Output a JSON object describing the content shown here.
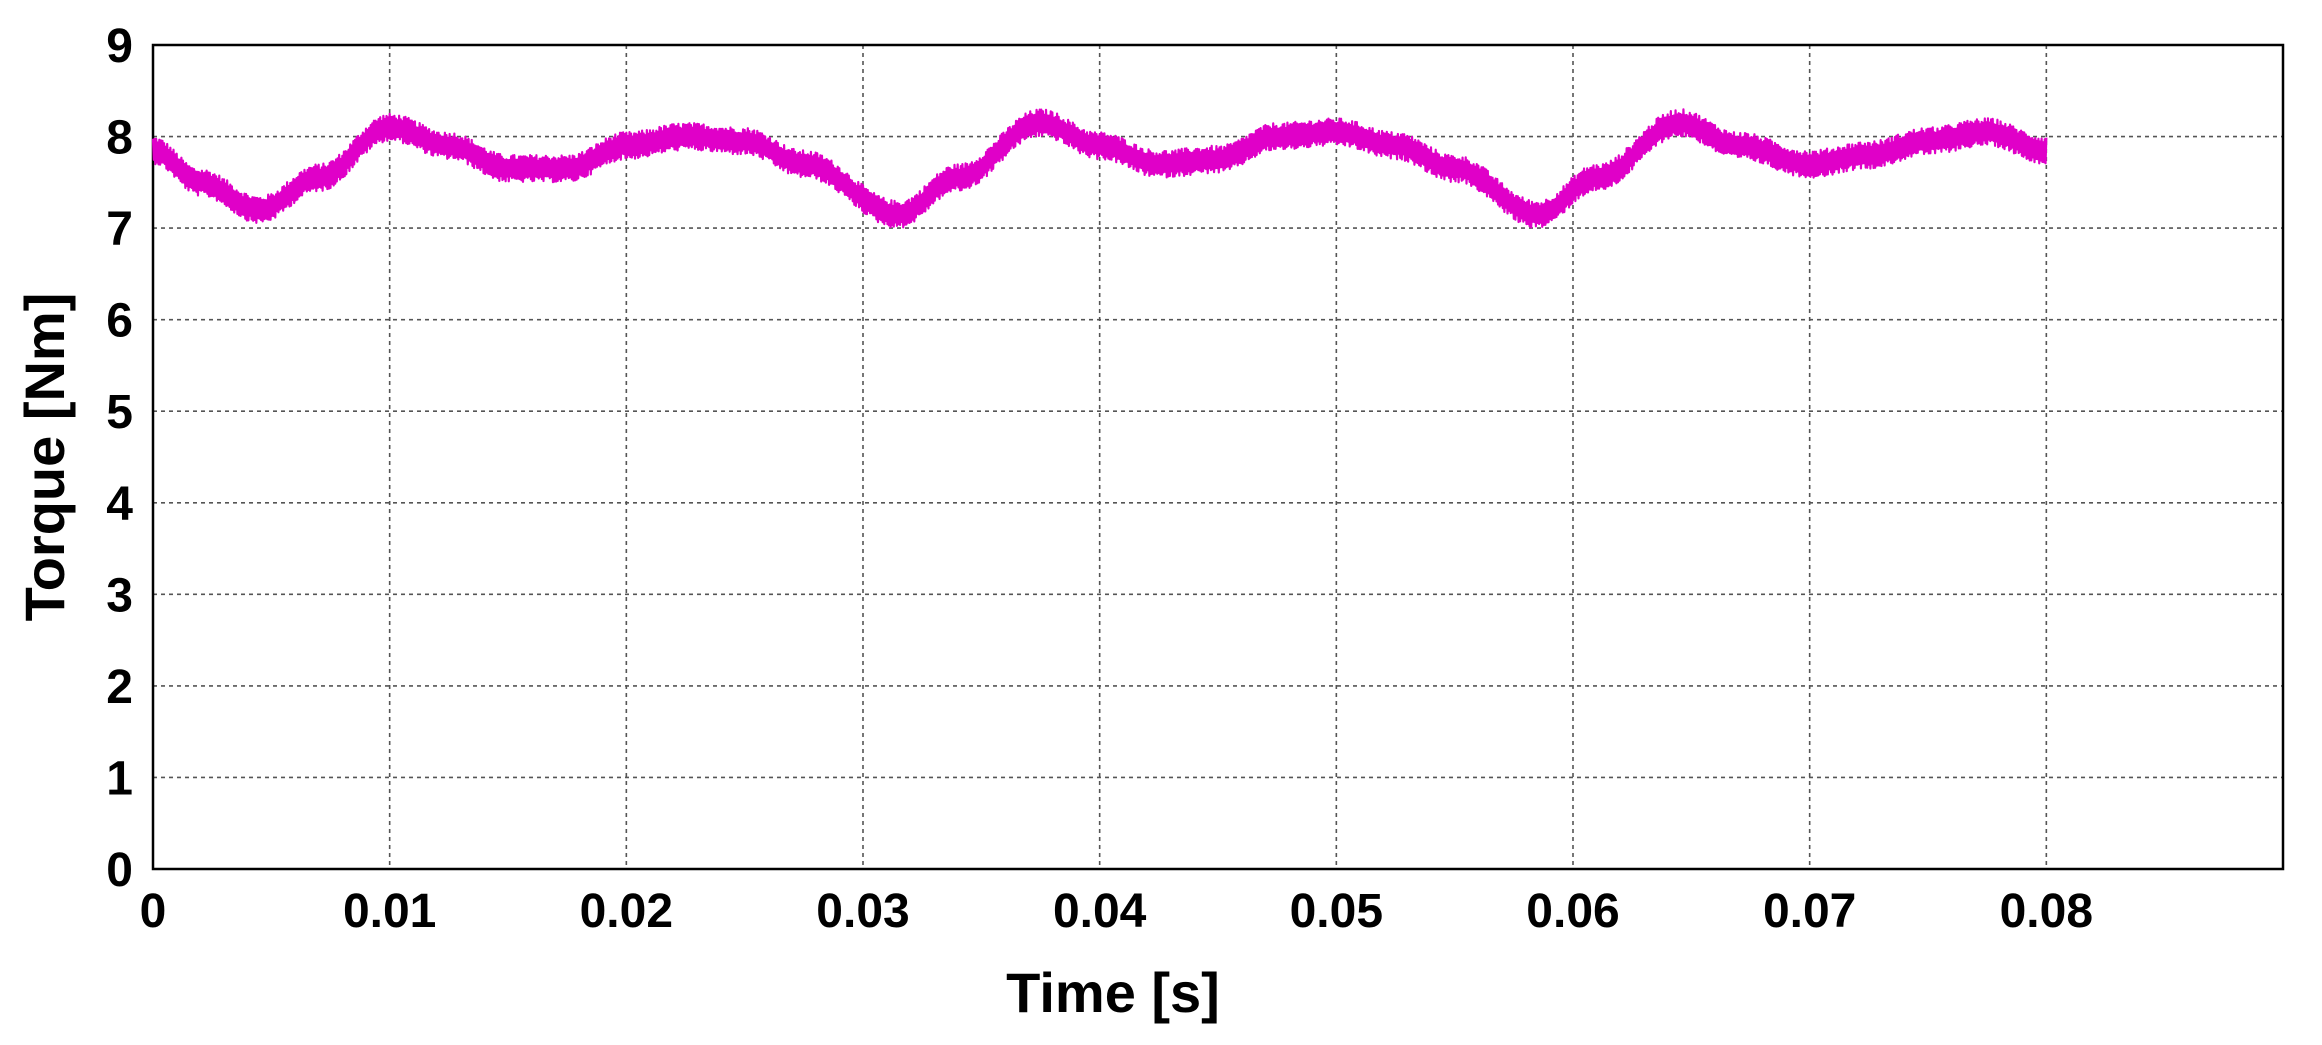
{
  "chart_data": {
    "type": "line",
    "title": "",
    "xlabel": "Time [s]",
    "ylabel": "Torque [Nm]",
    "xlim": [
      0,
      0.09
    ],
    "ylim": [
      0,
      9
    ],
    "x_tick_labels": [
      "0",
      "0.01",
      "0.02",
      "0.03",
      "0.04",
      "0.05",
      "0.06",
      "0.07",
      "0.08"
    ],
    "y_tick_labels": [
      "0",
      "1",
      "2",
      "3",
      "4",
      "5",
      "6",
      "7",
      "8",
      "9"
    ],
    "grid": true,
    "series": [
      {
        "color": "#e000c8",
        "x": [
          0,
          0.002,
          0.0045,
          0.007,
          0.01,
          0.0125,
          0.015,
          0.0175,
          0.02,
          0.0225,
          0.025,
          0.0275,
          0.0315,
          0.034,
          0.0375,
          0.04,
          0.0425,
          0.045,
          0.0475,
          0.05,
          0.0525,
          0.055,
          0.0585,
          0.061,
          0.0645,
          0.067,
          0.07,
          0.0725,
          0.075,
          0.0775,
          0.08
        ],
        "y": [
          7.85,
          7.5,
          7.2,
          7.55,
          8.1,
          7.9,
          7.65,
          7.65,
          7.9,
          8.0,
          7.95,
          7.7,
          7.15,
          7.55,
          8.15,
          7.9,
          7.7,
          7.75,
          8.0,
          8.05,
          7.9,
          7.65,
          7.15,
          7.55,
          8.15,
          7.9,
          7.7,
          7.8,
          7.95,
          8.05,
          7.85
        ],
        "noise_amplitude": 0.15
      }
    ]
  }
}
